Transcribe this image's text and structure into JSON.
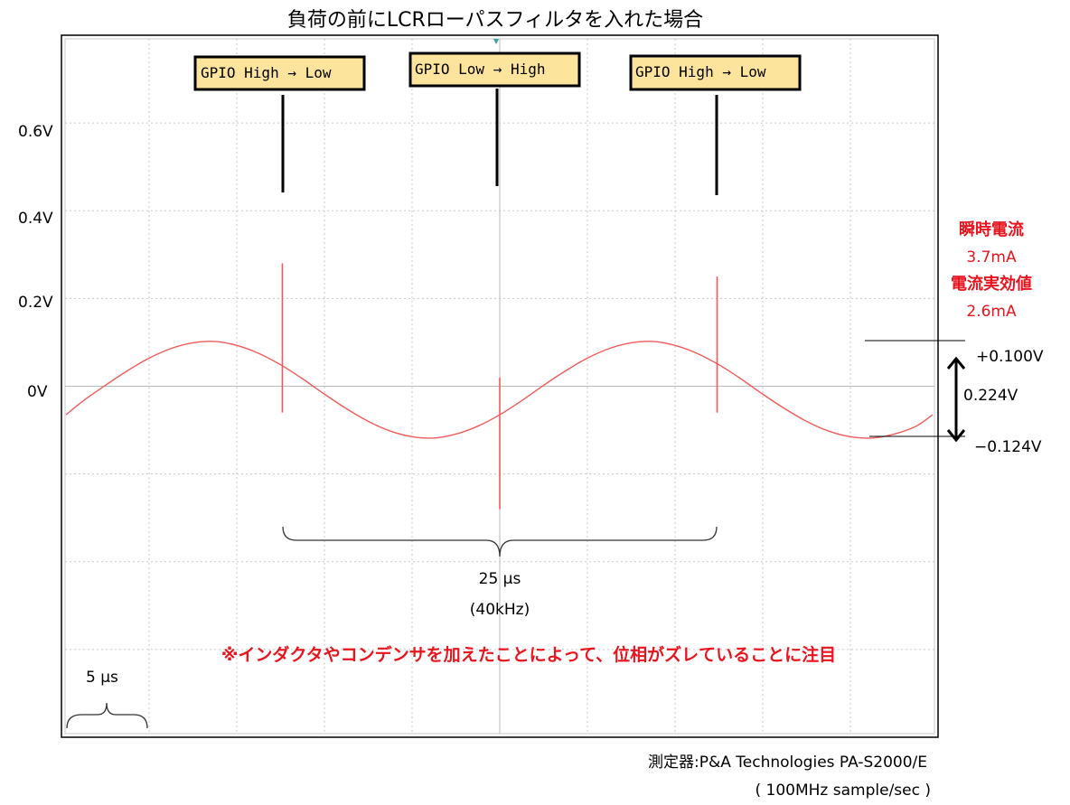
{
  "chart_data": {
    "type": "line",
    "title": "負荷の前にLCRローパスフィルタを入れた場合",
    "xlabel": "",
    "ylabel": "",
    "x_unit": "µs",
    "xlim": [
      0,
      50
    ],
    "ylim": [
      -0.8,
      0.8
    ],
    "grid": true,
    "x_divisions": 10,
    "y_divisions": 8,
    "y_tick_labels": [
      {
        "value": 0.6,
        "label": "0.6V"
      },
      {
        "value": 0.4,
        "label": "0.4V"
      },
      {
        "value": 0.2,
        "label": "0.2V"
      },
      {
        "value": 0,
        "label": "0V"
      }
    ],
    "series": [
      {
        "color": "#f05a5a",
        "x_step": 1.25,
        "values": [
          -0.065,
          -0.033,
          0.002,
          0.035,
          0.064,
          0.086,
          0.099,
          0.102,
          0.093,
          0.075,
          0.049,
          0.017,
          -0.018,
          -0.051,
          -0.08,
          -0.102,
          -0.115,
          -0.118,
          -0.109,
          -0.091,
          -0.065,
          -0.033,
          0.002,
          0.035,
          0.064,
          0.086,
          0.099,
          0.102,
          0.093,
          0.075,
          0.049,
          0.017,
          -0.018,
          -0.051,
          -0.08,
          -0.102,
          -0.115,
          -0.118,
          -0.109,
          -0.091,
          -0.065
        ],
        "spikes": [
          {
            "t": 12.6,
            "max": 0.28,
            "min": -0.06
          },
          {
            "t": 25.0,
            "max": 0.02,
            "min": -0.28
          },
          {
            "t": 37.4,
            "max": 0.25,
            "min": -0.06
          }
        ]
      }
    ],
    "annotations": {
      "events": [
        {
          "label": "GPIO High → Low",
          "t": 12.6
        },
        {
          "label": "GPIO Low → High",
          "t": 25.0
        },
        {
          "label": "GPIO High → Low",
          "t": 37.4
        }
      ],
      "period_label": "25 µs",
      "frequency_label": "(40kHz)",
      "division_label": "5 µs",
      "note": "※インダクタやコンデンサを加えたことによって、位相がズレていることに注目",
      "current_peak_title": "瞬時電流",
      "current_peak_value": "3.7mA",
      "current_rms_title": "電流実効値",
      "current_rms_value": "2.6mA",
      "upper_level": {
        "value": 0.1,
        "label": "+0.100V"
      },
      "lower_level": {
        "value": -0.124,
        "label": "−0.124V"
      },
      "peak_to_peak_label": "0.224V"
    },
    "footer": {
      "instrument": "測定器:P&A Technologies PA-S2000/E",
      "sample_rate": "( 100MHz sample/sec )"
    },
    "colors": {
      "trace": "#f05a5a",
      "annotation_red": "#e8141e",
      "label_box": "#fde49c",
      "grid": "#c8c8c8"
    }
  }
}
